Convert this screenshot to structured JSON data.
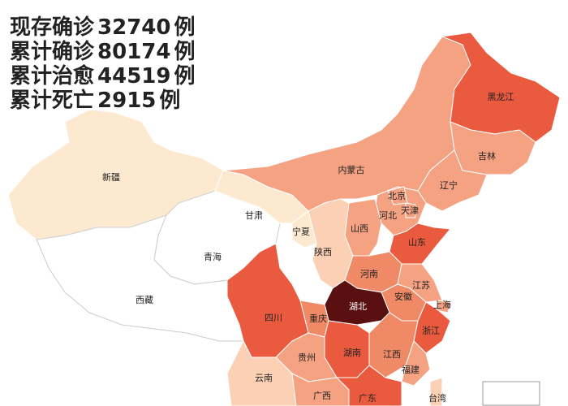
{
  "stats": [
    {
      "label": "现存确诊",
      "value": 32740,
      "unit": "例"
    },
    {
      "label": "累计确诊",
      "value": 80174,
      "unit": "例"
    },
    {
      "label": "累计治愈",
      "value": 44519,
      "unit": "例"
    },
    {
      "label": "累计死亡",
      "value": 2915,
      "unit": "例"
    }
  ],
  "provinces": [
    "新疆",
    "西藏",
    "青海",
    "甘肃",
    "宁夏",
    "陕西",
    "内蒙古",
    "黑龙江",
    "吉林",
    "辽宁",
    "北京",
    "天津",
    "河北",
    "山西",
    "山东",
    "河南",
    "江苏",
    "安徽",
    "上海",
    "湖北",
    "四川",
    "重庆",
    "浙江",
    "湖南",
    "江西",
    "贵州",
    "福建",
    "云南",
    "广西",
    "广东",
    "台湾"
  ]
}
